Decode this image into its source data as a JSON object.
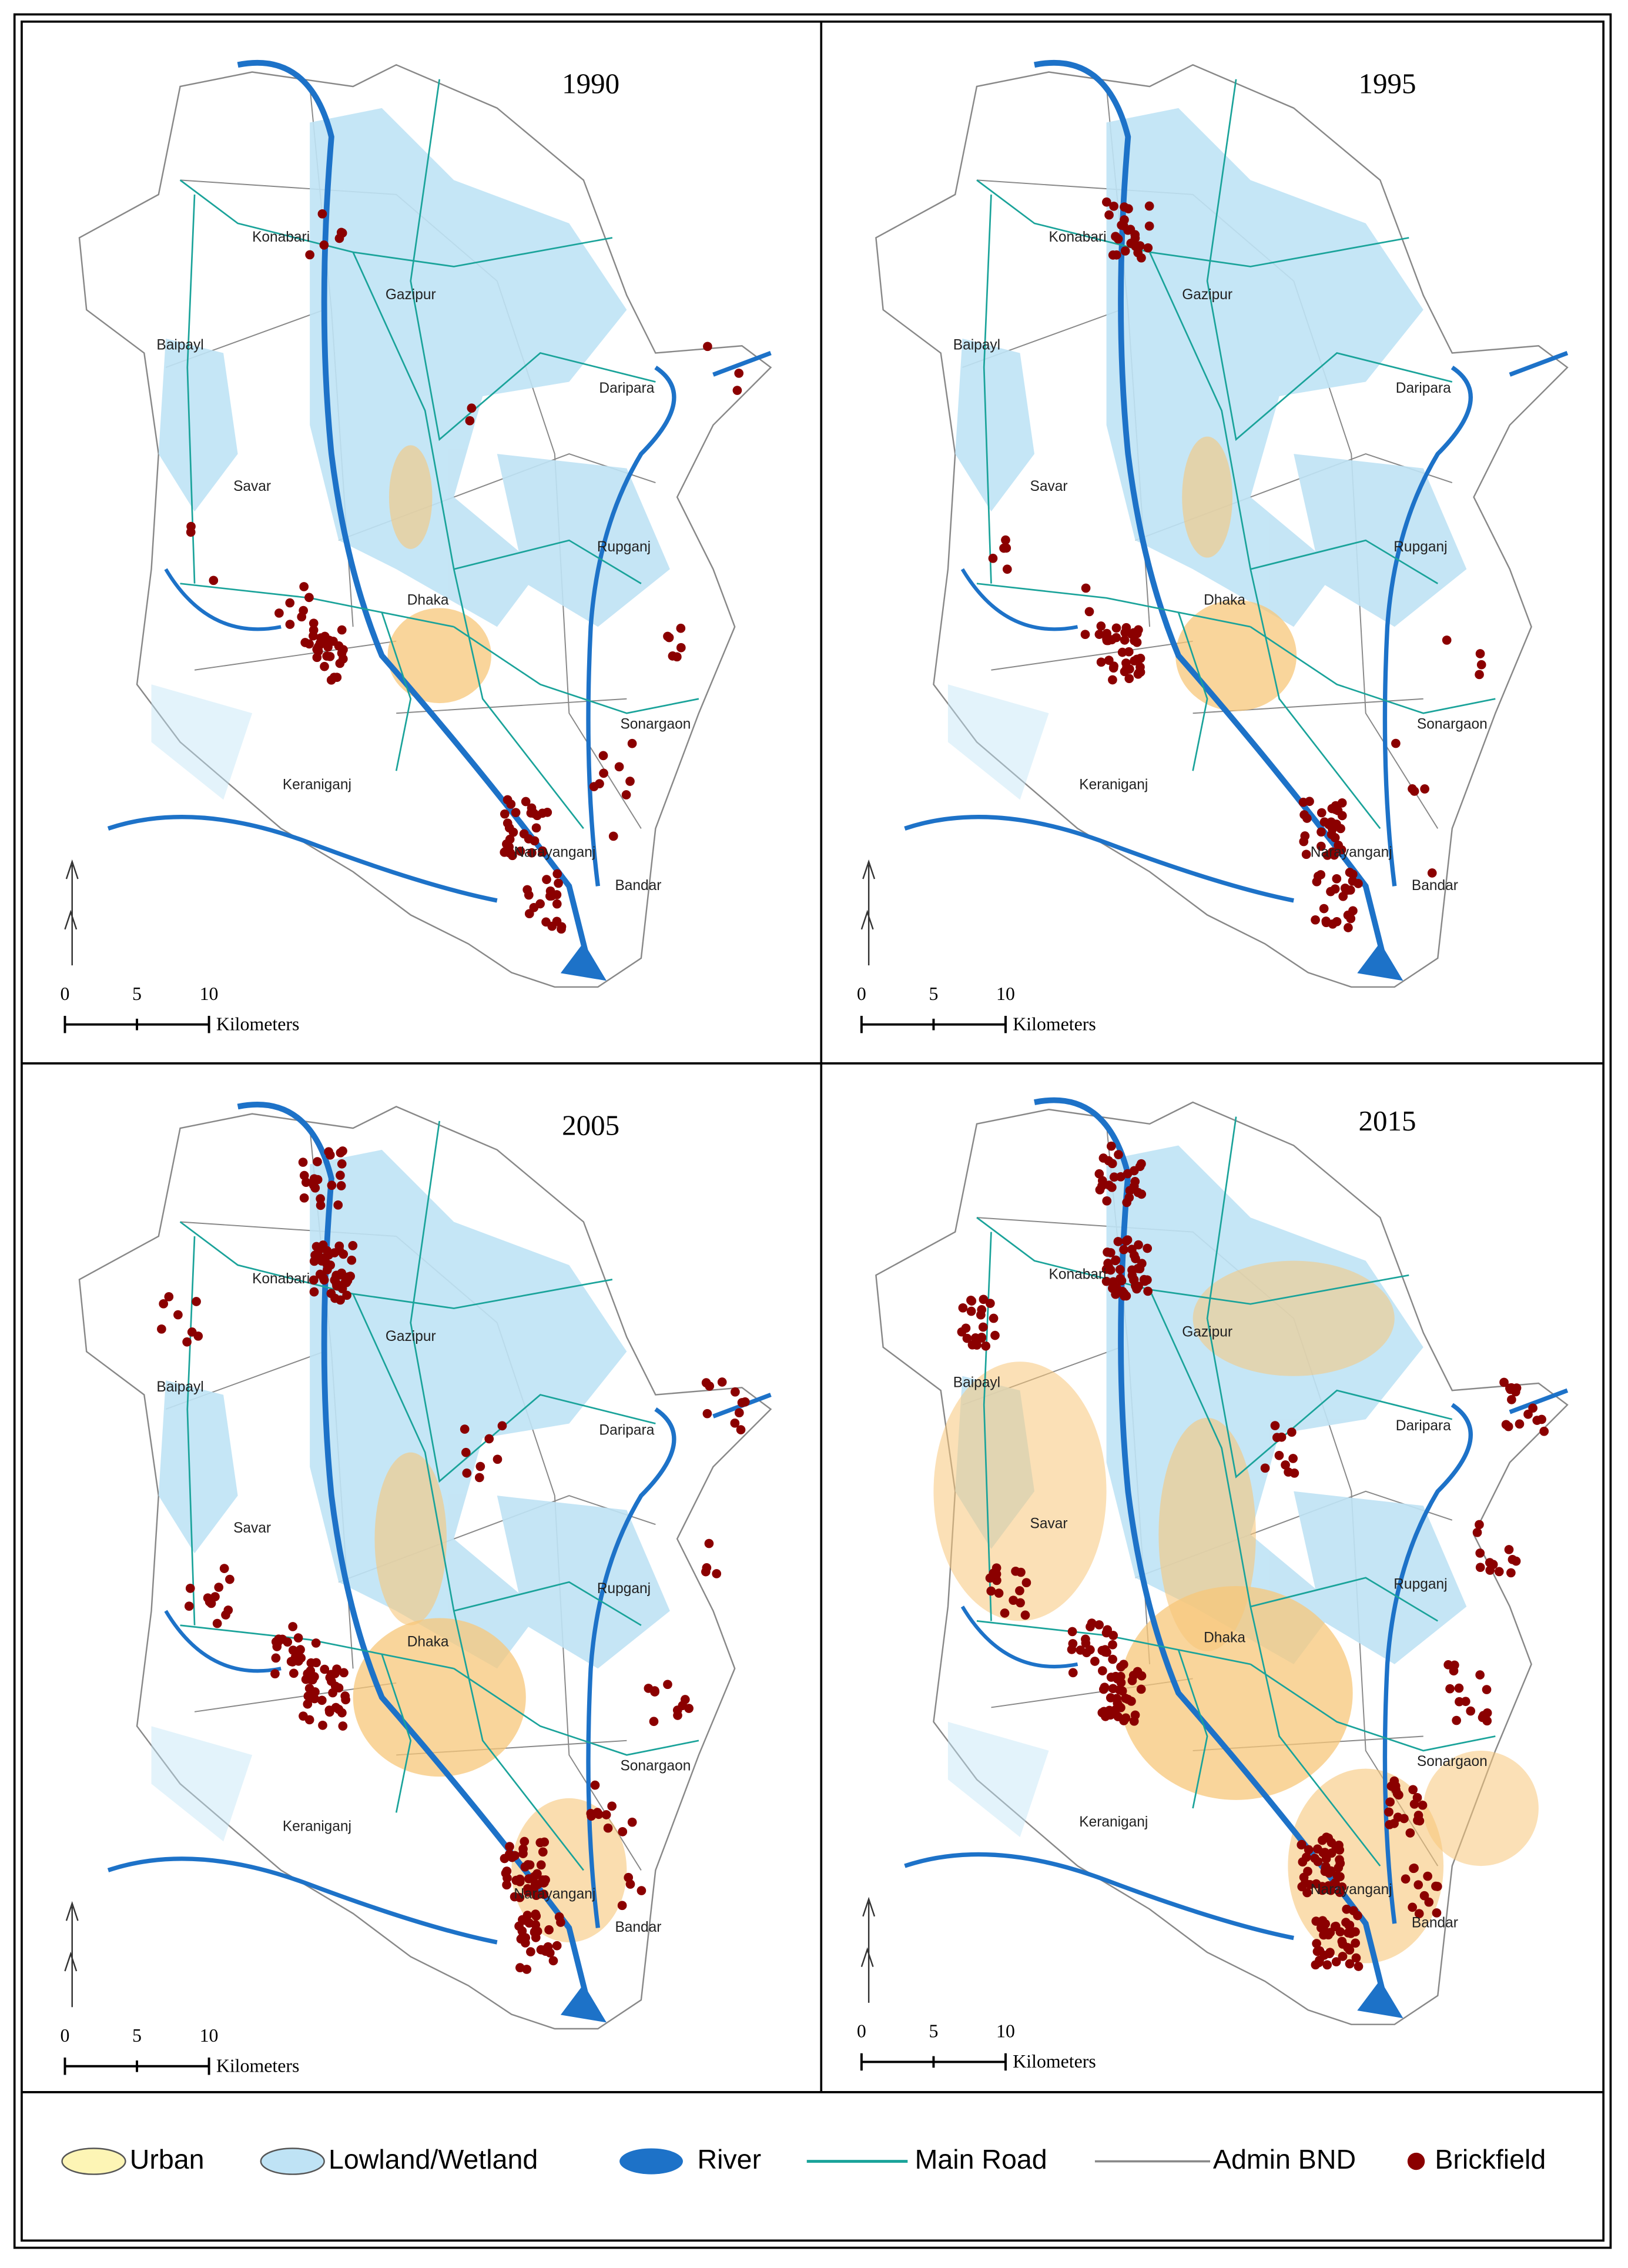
{
  "panels": [
    {
      "year": "1990",
      "places": [
        "Konabari",
        "Gazipur",
        "Baipayl",
        "Daripara",
        "Savar",
        "Rupganj",
        "Dhaka",
        "Sonargaon",
        "Keraniganj",
        "Narayanganj",
        "Bandar"
      ],
      "scale": {
        "ticks": [
          "0",
          "5",
          "10"
        ],
        "unit": "Kilometers"
      }
    },
    {
      "year": "1995",
      "places": [
        "Konabari",
        "Gazipur",
        "Baipayl",
        "Daripara",
        "Savar",
        "Rupganj",
        "Dhaka",
        "Sonargaon",
        "Keraniganj",
        "Narayanganj",
        "Bandar"
      ],
      "scale": {
        "ticks": [
          "0",
          "5",
          "10"
        ],
        "unit": "Kilometers"
      }
    },
    {
      "year": "2005",
      "places": [
        "Konabari",
        "Gazipur",
        "Baipayl",
        "Daripara",
        "Savar",
        "Rupganj",
        "Dhaka",
        "Sonargaon",
        "Keraniganj",
        "Narayanganj",
        "Bandar"
      ],
      "scale": {
        "ticks": [
          "0",
          "5",
          "10"
        ],
        "unit": "Kilometers"
      }
    },
    {
      "year": "2015",
      "places": [
        "Konabari",
        "Gazipur",
        "Baipayl",
        "Daripara",
        "Savar",
        "Rupganj",
        "Dhaka",
        "Sonargaon",
        "Keraniganj",
        "Narayanganj",
        "Bandar"
      ],
      "scale": {
        "ticks": [
          "0",
          "5",
          "10"
        ],
        "unit": "Kilometers"
      }
    }
  ],
  "legend": [
    "Urban",
    "Lowland/Wetland",
    "River",
    "Main Road",
    "Admin BND",
    "Brickfield"
  ]
}
